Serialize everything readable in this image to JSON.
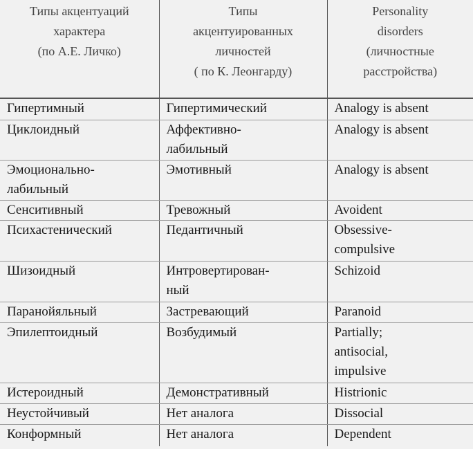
{
  "table": {
    "header": [
      "Типы акцентуаций\nхарактера\n(по А.Е. Личко)",
      "Типы\nакцентуированных\nличностей\n( по К. Леонгарду)",
      "Personality\ndisorders\n(личностные\nрасстройства)"
    ],
    "rows": [
      [
        "Гипертимный",
        "Гипертимический",
        "Analogy is absent"
      ],
      [
        "Циклоидный",
        "Аффективно-\nлабильный",
        "Analogy is absent"
      ],
      [
        "Эмоционально-\nлабильный",
        "Эмотивный",
        "Analogy is absent"
      ],
      [
        "Сенситивный",
        "Тревожный",
        "Avoident"
      ],
      [
        "Психастенический",
        "Педантичный",
        "Obsessive-\ncompulsive"
      ],
      [
        "Шизоидный",
        "Интровертирован-\nный",
        "Schizoid"
      ],
      [
        "Паранойяльный",
        "Застревающий",
        "Paranoid"
      ],
      [
        "Эпилептоидный",
        "Возбудимый",
        "Partially;\nantisocial,\nimpulsive"
      ],
      [
        "Истероидный",
        "Демонстративный",
        "Histrionic"
      ],
      [
        "Неустойчивый",
        "Нет аналога",
        "Dissocial"
      ],
      [
        "Конформный",
        "Нет аналога",
        "Dependent"
      ]
    ]
  }
}
